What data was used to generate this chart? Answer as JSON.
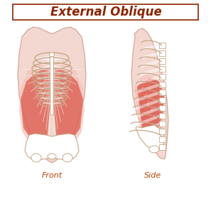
{
  "title": "External Oblique",
  "title_fontsize": 12,
  "title_color": "#8B2500",
  "title_box_color": "#8B2500",
  "label_front": "Front",
  "label_side": "Side",
  "label_fontsize": 8,
  "label_color": "#C04000",
  "bg_color": "#FFFFFF",
  "body_color": "#F2D8D0",
  "body_edge_color": "#D4A898",
  "bone_color": "#FFFFFF",
  "bone_edge_color": "#C8A888",
  "muscle_red": "#CC1100",
  "muscle_pink": "#F5C0B8"
}
